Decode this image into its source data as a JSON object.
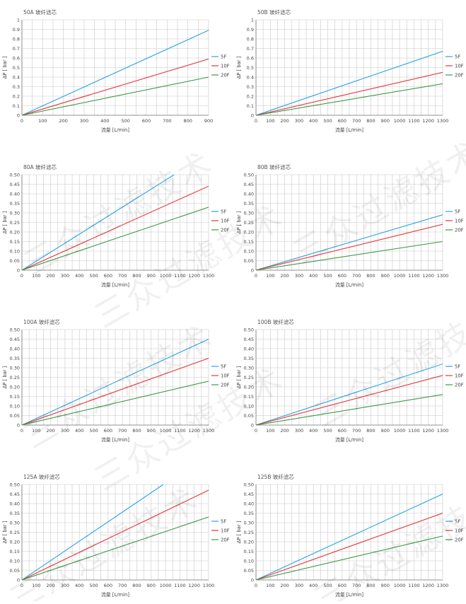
{
  "watermark_text": "三众过滤技术",
  "line_colors": {
    "5F": "#2aa3e0",
    "10F": "#e8343a",
    "20F": "#3c9a48"
  },
  "chart_data": [
    {
      "type": "line",
      "title": "50A 玻纤滤芯",
      "xlabel": "流量 [L/min]",
      "ylabel": "ΔP [ bar ]",
      "xlim": [
        0,
        900
      ],
      "ylim": [
        0,
        1
      ],
      "x_ticks": [
        0,
        100,
        200,
        300,
        400,
        500,
        600,
        700,
        800,
        900
      ],
      "y_ticks": [
        "0",
        "0.1",
        "0.2",
        "0.3",
        "0.4",
        "0.5",
        "0.6",
        "0.7",
        "0.8",
        "0.9",
        "1"
      ],
      "grid": true,
      "legend_position": "right",
      "series": [
        {
          "name": "5F",
          "points": [
            [
              0,
              0
            ],
            [
              900,
              0.89
            ]
          ]
        },
        {
          "name": "10F",
          "points": [
            [
              0,
              0
            ],
            [
              900,
              0.59
            ]
          ]
        },
        {
          "name": "20F",
          "points": [
            [
              0,
              0
            ],
            [
              900,
              0.4
            ]
          ]
        }
      ]
    },
    {
      "type": "line",
      "title": "50B 玻纤滤芯",
      "xlabel": "流量 [L/min]",
      "ylabel": "ΔP [ bar ]",
      "xlim": [
        0,
        1300
      ],
      "ylim": [
        0,
        1
      ],
      "x_ticks": [
        0,
        100,
        200,
        300,
        400,
        500,
        600,
        700,
        800,
        900,
        1000,
        1100,
        1200,
        1300
      ],
      "y_ticks": [
        "0",
        "0.1",
        "0.2",
        "0.3",
        "0.4",
        "0.5",
        "0.6",
        "0.7",
        "0.8",
        "0.9",
        "1"
      ],
      "grid": true,
      "legend_position": "right",
      "series": [
        {
          "name": "5F",
          "points": [
            [
              0,
              0
            ],
            [
              1300,
              0.67
            ]
          ]
        },
        {
          "name": "10F",
          "points": [
            [
              0,
              0
            ],
            [
              1300,
              0.45
            ]
          ]
        },
        {
          "name": "20F",
          "points": [
            [
              0,
              0
            ],
            [
              1300,
              0.33
            ]
          ]
        }
      ]
    },
    {
      "type": "line",
      "title": "80A 玻纤滤芯",
      "xlabel": "流量 [L/min]",
      "ylabel": "ΔP [ bar ]",
      "xlim": [
        0,
        1300
      ],
      "ylim": [
        0,
        0.5
      ],
      "x_ticks": [
        0,
        100,
        200,
        300,
        400,
        500,
        600,
        700,
        800,
        900,
        1000,
        1100,
        1200,
        1300
      ],
      "y_ticks": [
        "0",
        "0.05",
        "0.10",
        "0.15",
        "0.20",
        "0.25",
        "0.30",
        "0.35",
        "0.40",
        "0.45",
        "0.50"
      ],
      "grid": true,
      "legend_position": "right",
      "series": [
        {
          "name": "5F",
          "points": [
            [
              0,
              0
            ],
            [
              1060,
              0.5
            ]
          ]
        },
        {
          "name": "10F",
          "points": [
            [
              0,
              0
            ],
            [
              1300,
              0.44
            ]
          ]
        },
        {
          "name": "20F",
          "points": [
            [
              0,
              0
            ],
            [
              1300,
              0.33
            ]
          ]
        }
      ]
    },
    {
      "type": "line",
      "title": "80B 玻纤滤芯",
      "xlabel": "流量 [L/min]",
      "ylabel": "ΔP [ bar ]",
      "xlim": [
        0,
        1300
      ],
      "ylim": [
        0,
        0.5
      ],
      "x_ticks": [
        0,
        100,
        200,
        300,
        400,
        500,
        600,
        700,
        800,
        900,
        1000,
        1100,
        1200,
        1300
      ],
      "y_ticks": [
        "0",
        "0.05",
        "0.10",
        "0.15",
        "0.20",
        "0.25",
        "0.30",
        "0.35",
        "0.40",
        "0.45",
        "0.50"
      ],
      "grid": true,
      "legend_position": "right",
      "series": [
        {
          "name": "5F",
          "points": [
            [
              0,
              0
            ],
            [
              1300,
              0.29
            ]
          ]
        },
        {
          "name": "10F",
          "points": [
            [
              0,
              0
            ],
            [
              1300,
              0.24
            ]
          ]
        },
        {
          "name": "20F",
          "points": [
            [
              0,
              0
            ],
            [
              1300,
              0.15
            ]
          ]
        }
      ]
    },
    {
      "type": "line",
      "title": "100A 玻纤滤芯",
      "xlabel": "流量 [L/min]",
      "ylabel": "ΔP [ bar ]",
      "xlim": [
        0,
        1300
      ],
      "ylim": [
        0,
        0.5
      ],
      "x_ticks": [
        0,
        100,
        200,
        300,
        400,
        500,
        600,
        700,
        800,
        900,
        1000,
        1100,
        1200,
        1300
      ],
      "y_ticks": [
        "0",
        "0.05",
        "0.10",
        "0.15",
        "0.20",
        "0.25",
        "0.30",
        "0.35",
        "0.40",
        "0.45",
        "0.50"
      ],
      "grid": true,
      "legend_position": "right",
      "series": [
        {
          "name": "5F",
          "points": [
            [
              0,
              0
            ],
            [
              1300,
              0.45
            ]
          ]
        },
        {
          "name": "10F",
          "points": [
            [
              0,
              0
            ],
            [
              1300,
              0.35
            ]
          ]
        },
        {
          "name": "20F",
          "points": [
            [
              0,
              0
            ],
            [
              1300,
              0.23
            ]
          ]
        }
      ]
    },
    {
      "type": "line",
      "title": "100B 玻纤滤芯",
      "xlabel": "流量 [L/min]",
      "ylabel": "ΔP [ bar ]",
      "xlim": [
        0,
        1300
      ],
      "ylim": [
        0,
        0.5
      ],
      "x_ticks": [
        0,
        100,
        200,
        300,
        400,
        500,
        600,
        700,
        800,
        900,
        1000,
        1100,
        1200,
        1300
      ],
      "y_ticks": [
        "0",
        "0.05",
        "0.10",
        "0.15",
        "0.20",
        "0.25",
        "0.30",
        "0.35",
        "0.40",
        "0.45",
        "0.50"
      ],
      "grid": true,
      "legend_position": "right",
      "series": [
        {
          "name": "5F",
          "points": [
            [
              0,
              0
            ],
            [
              1300,
              0.32
            ]
          ]
        },
        {
          "name": "10F",
          "points": [
            [
              0,
              0
            ],
            [
              1300,
              0.26
            ]
          ]
        },
        {
          "name": "20F",
          "points": [
            [
              0,
              0
            ],
            [
              1300,
              0.16
            ]
          ]
        }
      ]
    },
    {
      "type": "line",
      "title": "125A 玻纤滤芯",
      "xlabel": "流量 [L/min]",
      "ylabel": "ΔP [ bar ]",
      "xlim": [
        0,
        1300
      ],
      "ylim": [
        0,
        0.5
      ],
      "x_ticks": [
        0,
        100,
        200,
        300,
        400,
        500,
        600,
        700,
        800,
        900,
        1000,
        1100,
        1200,
        1300
      ],
      "y_ticks": [
        "0",
        "0.05",
        "0.10",
        "0.15",
        "0.20",
        "0.25",
        "0.30",
        "0.35",
        "0.40",
        "0.45",
        "0.50"
      ],
      "grid": true,
      "legend_position": "right",
      "series": [
        {
          "name": "5F",
          "points": [
            [
              0,
              0
            ],
            [
              985,
              0.5
            ]
          ]
        },
        {
          "name": "10F",
          "points": [
            [
              0,
              0
            ],
            [
              1300,
              0.47
            ]
          ]
        },
        {
          "name": "20F",
          "points": [
            [
              0,
              0
            ],
            [
              1300,
              0.33
            ]
          ]
        }
      ]
    },
    {
      "type": "line",
      "title": "125B 玻纤滤芯",
      "xlabel": "流量 [L/min]",
      "ylabel": "ΔP [ bar ]",
      "xlim": [
        0,
        1300
      ],
      "ylim": [
        0,
        0.5
      ],
      "x_ticks": [
        0,
        100,
        200,
        300,
        400,
        500,
        600,
        700,
        800,
        900,
        1000,
        1100,
        1200,
        1300
      ],
      "y_ticks": [
        "0",
        "0.05",
        "0.10",
        "0.15",
        "0.20",
        "0.25",
        "0.30",
        "0.35",
        "0.40",
        "0.45",
        "0.50"
      ],
      "grid": true,
      "legend_position": "right",
      "series": [
        {
          "name": "5F",
          "points": [
            [
              0,
              0
            ],
            [
              1300,
              0.45
            ]
          ]
        },
        {
          "name": "10F",
          "points": [
            [
              0,
              0
            ],
            [
              1300,
              0.35
            ]
          ]
        },
        {
          "name": "20F",
          "points": [
            [
              0,
              0
            ],
            [
              1300,
              0.23
            ]
          ]
        }
      ]
    }
  ]
}
